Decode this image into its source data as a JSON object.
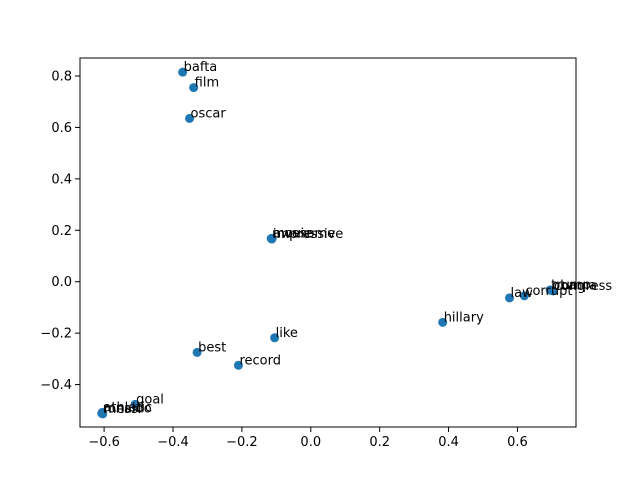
{
  "chart_data": {
    "type": "scatter",
    "title": "",
    "xlabel": "",
    "ylabel": "",
    "xlim": [
      -0.67,
      0.77
    ],
    "ylim": [
      -0.565,
      0.87
    ],
    "xticks": [
      -0.6,
      -0.4,
      -0.2,
      0.0,
      0.2,
      0.4,
      0.6
    ],
    "yticks": [
      -0.4,
      -0.2,
      0.0,
      0.2,
      0.4,
      0.6,
      0.8
    ],
    "xtick_labels": [
      "−0.6",
      "−0.4",
      "−0.2",
      "0.0",
      "0.2",
      "0.4",
      "0.6"
    ],
    "ytick_labels": [
      "−0.4",
      "−0.2",
      "0.0",
      "0.2",
      "0.4",
      "0.6",
      "0.8"
    ],
    "grid": false,
    "marker_color": "#1f77b4",
    "points": [
      {
        "label": "bafta",
        "x": -0.372,
        "y": 0.815
      },
      {
        "label": "film",
        "x": -0.34,
        "y": 0.755
      },
      {
        "label": "oscar",
        "x": -0.352,
        "y": 0.635
      },
      {
        "label": "movie",
        "x": -0.115,
        "y": 0.168
      },
      {
        "label": "impressive",
        "x": -0.113,
        "y": 0.166
      },
      {
        "label": "awesome",
        "x": -0.112,
        "y": 0.169
      },
      {
        "label": "like",
        "x": -0.105,
        "y": -0.218
      },
      {
        "label": "best",
        "x": -0.33,
        "y": -0.275
      },
      {
        "label": "record",
        "x": -0.21,
        "y": -0.325
      },
      {
        "label": "goal",
        "x": -0.51,
        "y": -0.477
      },
      {
        "label": "athletic",
        "x": -0.605,
        "y": -0.508
      },
      {
        "label": "ronaldo",
        "x": -0.607,
        "y": -0.512
      },
      {
        "label": "messi",
        "x": -0.604,
        "y": -0.514
      },
      {
        "label": "hillary",
        "x": 0.383,
        "y": -0.158
      },
      {
        "label": "law",
        "x": 0.577,
        "y": -0.063
      },
      {
        "label": "corrupt",
        "x": 0.62,
        "y": -0.055
      },
      {
        "label": "trump",
        "x": 0.695,
        "y": -0.032
      },
      {
        "label": "congress",
        "x": 0.703,
        "y": -0.036
      },
      {
        "label": "obama",
        "x": 0.698,
        "y": -0.034
      }
    ]
  }
}
